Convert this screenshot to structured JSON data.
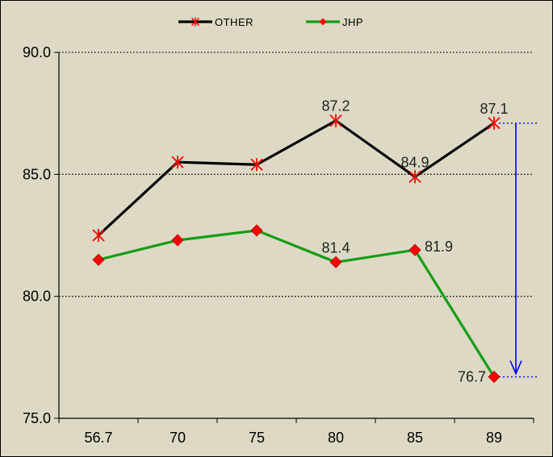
{
  "chart_data": {
    "type": "line",
    "title": "",
    "xlabel": "",
    "ylabel": "",
    "categories": [
      "56.7",
      "70",
      "75",
      "80",
      "85",
      "89"
    ],
    "ylim": [
      75.0,
      90.0
    ],
    "yticks": [
      "75.0",
      "80.0",
      "85.0",
      "90.0"
    ],
    "grid": "horizontal-dotted",
    "legend_position": "top-center",
    "series": [
      {
        "name": "OTHER",
        "values": [
          82.5,
          85.5,
          85.4,
          87.2,
          84.9,
          87.1
        ],
        "labels": [
          "",
          "",
          "",
          "87.2",
          "84.9",
          "87.1"
        ],
        "line_color": "#000000",
        "marker": "asterisk",
        "marker_color": "#ff0000"
      },
      {
        "name": "JHP",
        "values": [
          81.5,
          82.3,
          82.7,
          81.4,
          81.9,
          76.7
        ],
        "labels": [
          "",
          "",
          "",
          "81.4",
          "81.9",
          "76.7"
        ],
        "line_color": "#139c13",
        "marker": "diamond",
        "marker_color": "#ff0000"
      }
    ],
    "annotation": {
      "type": "downward-arrow",
      "from_value": 87.1,
      "to_value": 76.7,
      "color": "#0000ff"
    }
  }
}
